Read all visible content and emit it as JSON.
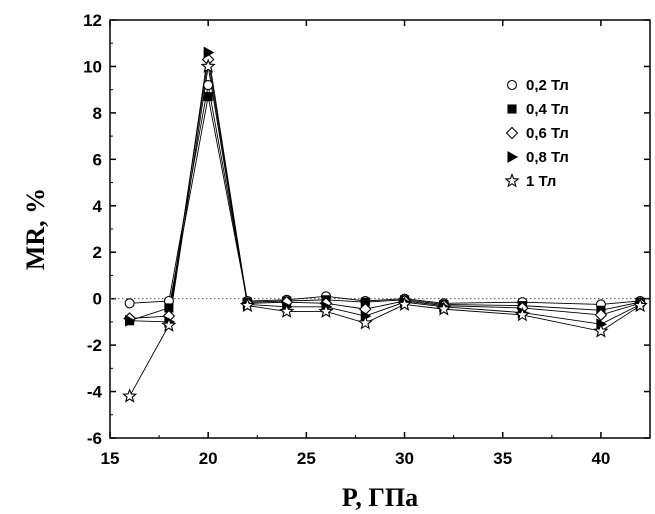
{
  "chart_data": {
    "type": "line",
    "xlabel": "P, ГПа",
    "ylabel": "MR, %",
    "xlim": [
      15,
      42.5
    ],
    "ylim": [
      -6,
      12
    ],
    "xticks": [
      15,
      20,
      25,
      30,
      35,
      40
    ],
    "yticks": [
      -6,
      -4,
      -2,
      0,
      2,
      4,
      6,
      8,
      10,
      12
    ],
    "zero_line": true,
    "legend_position": "top-right",
    "x": [
      16,
      18,
      20,
      22,
      24,
      26,
      28,
      30,
      32,
      36,
      40,
      42
    ],
    "series": [
      {
        "name": "0,2 Тл",
        "marker": "circle-open",
        "values": [
          -0.2,
          -0.1,
          9.2,
          -0.1,
          -0.05,
          0.1,
          -0.1,
          0.0,
          -0.2,
          -0.15,
          -0.25,
          -0.1
        ]
      },
      {
        "name": "0,4 Тл",
        "marker": "square-filled",
        "values": [
          -0.95,
          -0.4,
          8.7,
          -0.15,
          -0.1,
          -0.05,
          -0.15,
          -0.05,
          -0.25,
          -0.3,
          -0.5,
          -0.15
        ]
      },
      {
        "name": "0,6 Тл",
        "marker": "diamond-open",
        "values": [
          -0.85,
          -0.75,
          10.3,
          -0.2,
          -0.15,
          -0.2,
          -0.45,
          -0.1,
          -0.3,
          -0.4,
          -0.7,
          -0.2
        ]
      },
      {
        "name": "0,8 Тл",
        "marker": "triangle-right-filled",
        "values": [
          -0.95,
          -1.0,
          10.6,
          -0.25,
          -0.35,
          -0.35,
          -0.75,
          -0.15,
          -0.35,
          -0.6,
          -1.1,
          -0.25
        ]
      },
      {
        "name": "1 Тл",
        "marker": "star-open",
        "values": [
          -4.2,
          -1.15,
          10.0,
          -0.3,
          -0.55,
          -0.55,
          -1.05,
          -0.25,
          -0.45,
          -0.7,
          -1.4,
          -0.3
        ]
      }
    ]
  }
}
